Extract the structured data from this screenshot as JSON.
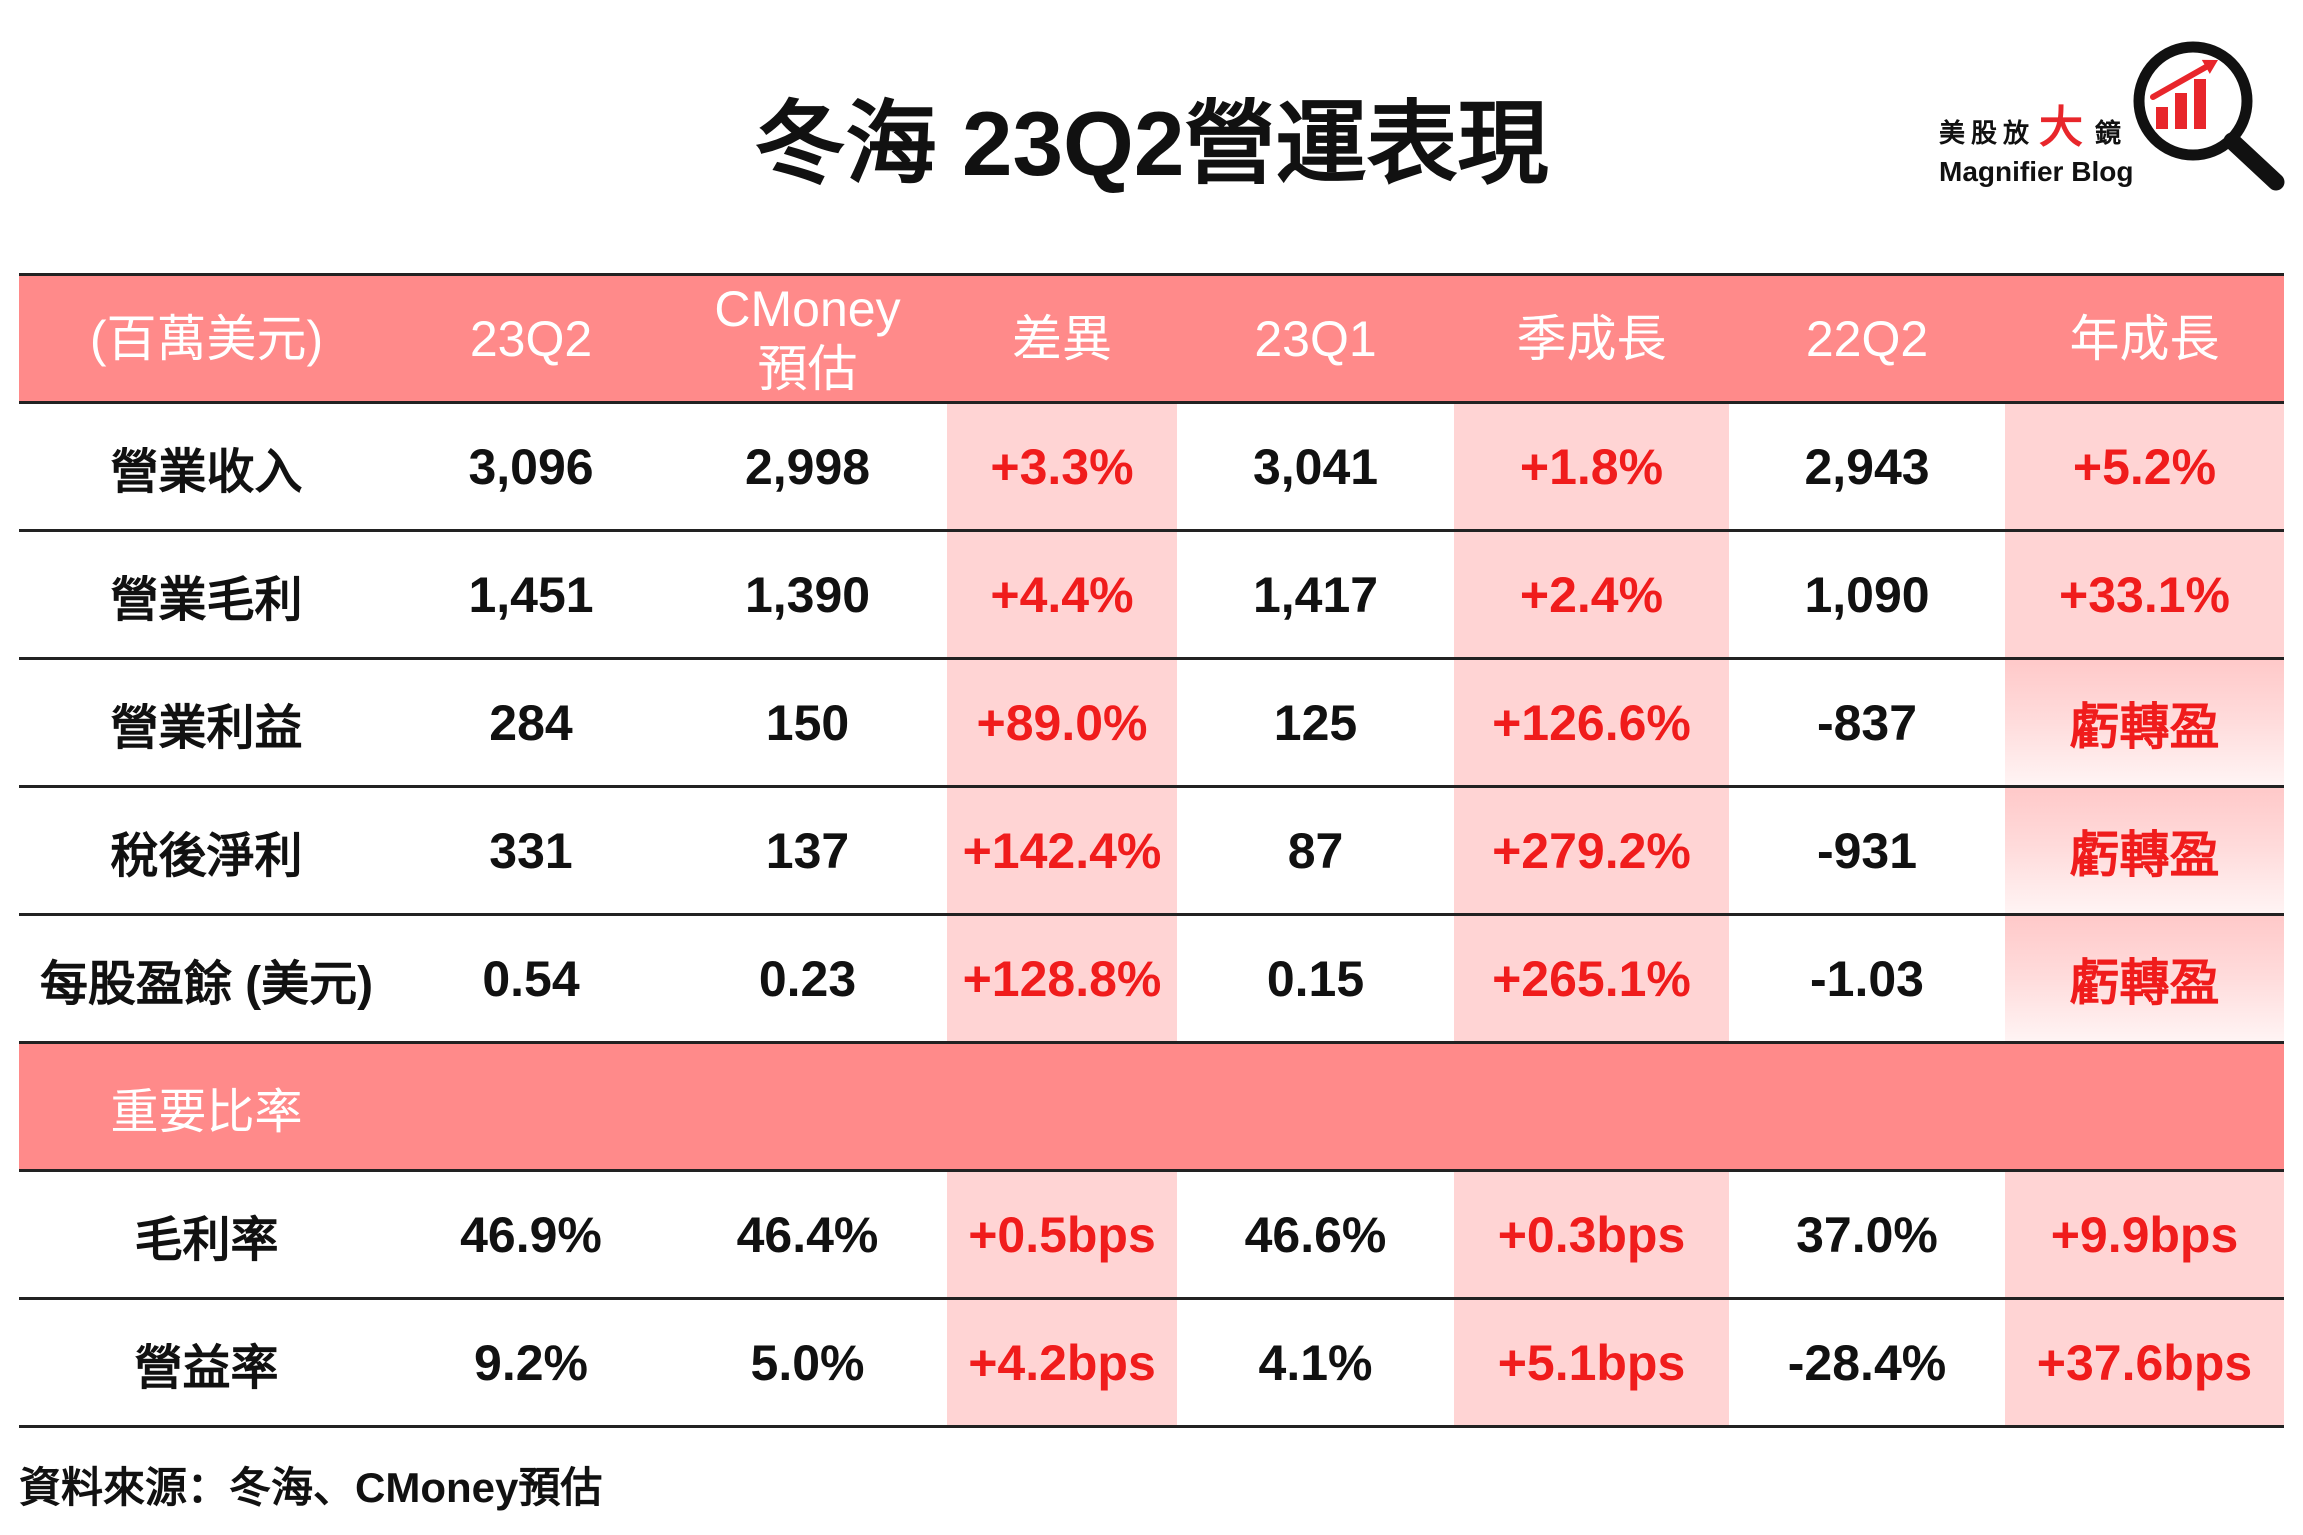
{
  "logo": {
    "name_prefix": "美股放",
    "name_highlight": "大",
    "name_suffix": "鏡",
    "tagline": "Magnifier Blog",
    "icon": "magnifier-chart-icon"
  },
  "colors": {
    "header_bg": "#ff8a8a",
    "highlight_bg": "#ffd4d4",
    "change_text": "#f01c1c",
    "brand_accent": "#e8262b",
    "rule_line": "#222222"
  },
  "chart_data": {
    "type": "table",
    "title": "冬海 23Q2營運表現",
    "columns": [
      "(百萬美元)",
      "23Q2",
      "CMoney\n預估",
      "差異",
      "23Q1",
      "季成長",
      "22Q2",
      "年成長"
    ],
    "rows": [
      {
        "label": "營業收入",
        "values": [
          "3,096",
          "2,998",
          "+3.3%",
          "3,041",
          "+1.8%",
          "2,943",
          "+5.2%"
        ]
      },
      {
        "label": "營業毛利",
        "values": [
          "1,451",
          "1,390",
          "+4.4%",
          "1,417",
          "+2.4%",
          "1,090",
          "+33.1%"
        ]
      },
      {
        "label": "營業利益",
        "values": [
          "284",
          "150",
          "+89.0%",
          "125",
          "+126.6%",
          "-837",
          "虧轉盈"
        ]
      },
      {
        "label": "稅後淨利",
        "values": [
          "331",
          "137",
          "+142.4%",
          "87",
          "+279.2%",
          "-931",
          "虧轉盈"
        ]
      },
      {
        "label": "每股盈餘 (美元)",
        "values": [
          "0.54",
          "0.23",
          "+128.8%",
          "0.15",
          "+265.1%",
          "-1.03",
          "虧轉盈"
        ]
      }
    ],
    "ratio_section": {
      "label": "重要比率",
      "rows": [
        {
          "label": "毛利率",
          "values": [
            "46.9%",
            "46.4%",
            "+0.5bps",
            "46.6%",
            "+0.3bps",
            "37.0%",
            "+9.9bps"
          ]
        },
        {
          "label": "營益率",
          "values": [
            "9.2%",
            "5.0%",
            "+4.2bps",
            "4.1%",
            "+5.1bps",
            "-28.4%",
            "+37.6bps"
          ]
        }
      ]
    }
  },
  "footer": {
    "source": "資料來源：冬海、CMoney預估"
  }
}
